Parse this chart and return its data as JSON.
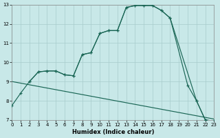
{
  "xlabel": "Humidex (Indice chaleur)",
  "bg_color": "#c8e8e8",
  "grid_color": "#a8cccc",
  "line_color": "#1a6655",
  "xlim": [
    0,
    23
  ],
  "ylim": [
    7,
    13
  ],
  "xticks": [
    0,
    1,
    2,
    3,
    4,
    5,
    6,
    7,
    8,
    9,
    10,
    11,
    12,
    13,
    14,
    15,
    16,
    17,
    18,
    19,
    20,
    21,
    22,
    23
  ],
  "yticks": [
    7,
    8,
    9,
    10,
    11,
    12,
    13
  ],
  "curve1_x": [
    0,
    1,
    2,
    3,
    4,
    5,
    6,
    7,
    8,
    9,
    10,
    11,
    12,
    13,
    14,
    15,
    16,
    17,
    18,
    20,
    21,
    22,
    23
  ],
  "curve1_y": [
    7.75,
    8.4,
    9.0,
    9.5,
    9.55,
    9.55,
    9.35,
    9.3,
    10.4,
    10.5,
    11.5,
    11.65,
    11.65,
    12.85,
    12.95,
    12.95,
    12.95,
    12.7,
    12.3,
    8.8,
    8.0,
    7.0,
    6.95
  ],
  "curve2_x": [
    2,
    3,
    4,
    5,
    6,
    7,
    8,
    9,
    10,
    11,
    12,
    13,
    14,
    15,
    16,
    17,
    18,
    21,
    22,
    23
  ],
  "curve2_y": [
    9.0,
    9.5,
    9.55,
    9.55,
    9.35,
    9.3,
    10.4,
    10.5,
    11.5,
    11.65,
    11.65,
    12.85,
    12.95,
    12.95,
    12.95,
    12.7,
    12.3,
    8.0,
    7.0,
    6.95
  ],
  "line3_x": [
    0,
    23
  ],
  "line3_y": [
    9.0,
    7.05
  ]
}
